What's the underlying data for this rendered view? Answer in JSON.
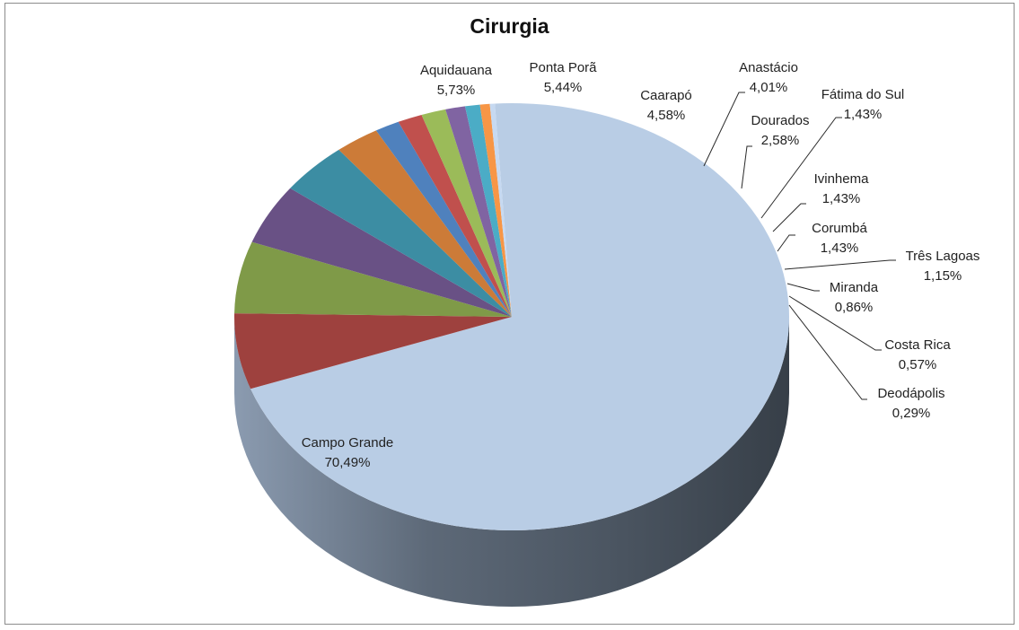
{
  "chart_data": {
    "type": "pie",
    "title": "Cirurgia",
    "three_d": true,
    "legend": "none",
    "slices": [
      {
        "name": "Campo Grande",
        "value": 70.49,
        "label": "70,49%",
        "color": "#b9cde5"
      },
      {
        "name": "Aquidauana",
        "value": 5.73,
        "label": "5,73%",
        "color": "#9e413e"
      },
      {
        "name": "Ponta Porã",
        "value": 5.44,
        "label": "5,44%",
        "color": "#7f9a48"
      },
      {
        "name": "Caarapó",
        "value": 4.58,
        "label": "4,58%",
        "color": "#695185"
      },
      {
        "name": "Anastácio",
        "value": 4.01,
        "label": "4,01%",
        "color": "#3c8da3"
      },
      {
        "name": "Dourados",
        "value": 2.58,
        "label": "2,58%",
        "color": "#cc7b38"
      },
      {
        "name": "Fátima do Sul",
        "value": 1.43,
        "label": "1,43%",
        "color": "#4f81bd"
      },
      {
        "name": "Ivinhema",
        "value": 1.43,
        "label": "1,43%",
        "color": "#c0504d"
      },
      {
        "name": "Corumbá",
        "value": 1.43,
        "label": "1,43%",
        "color": "#9bbb59"
      },
      {
        "name": "Três Lagoas",
        "value": 1.15,
        "label": "1,15%",
        "color": "#8064a2"
      },
      {
        "name": "Miranda",
        "value": 0.86,
        "label": "0,86%",
        "color": "#4bacc6"
      },
      {
        "name": "Costa Rica",
        "value": 0.57,
        "label": "0,57%",
        "color": "#f79646"
      },
      {
        "name": "Deodápolis",
        "value": 0.29,
        "label": "0,29%",
        "color": "#c6d9f1"
      }
    ]
  }
}
